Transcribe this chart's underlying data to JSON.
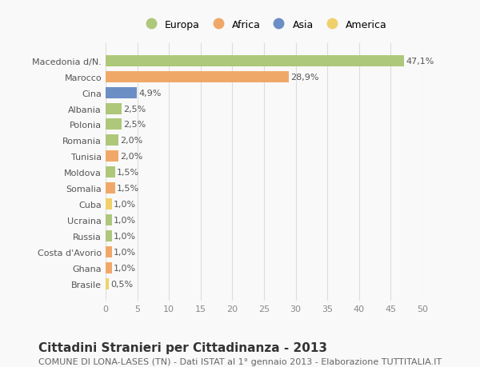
{
  "countries": [
    "Macedonia d/N.",
    "Marocco",
    "Cina",
    "Albania",
    "Polonia",
    "Romania",
    "Tunisia",
    "Moldova",
    "Somalia",
    "Cuba",
    "Ucraina",
    "Russia",
    "Costa d'Avorio",
    "Ghana",
    "Brasile"
  ],
  "values": [
    47.1,
    28.9,
    4.9,
    2.5,
    2.5,
    2.0,
    2.0,
    1.5,
    1.5,
    1.0,
    1.0,
    1.0,
    1.0,
    1.0,
    0.5
  ],
  "labels": [
    "47,1%",
    "28,9%",
    "4,9%",
    "2,5%",
    "2,5%",
    "2,0%",
    "2,0%",
    "1,5%",
    "1,5%",
    "1,0%",
    "1,0%",
    "1,0%",
    "1,0%",
    "1,0%",
    "0,5%"
  ],
  "colors": [
    "#adc87a",
    "#f0a868",
    "#6b8ec4",
    "#adc87a",
    "#adc87a",
    "#adc87a",
    "#f0a868",
    "#adc87a",
    "#f0a868",
    "#f0d06a",
    "#adc87a",
    "#adc87a",
    "#f0a868",
    "#f0a868",
    "#f0d06a"
  ],
  "legend_labels": [
    "Europa",
    "Africa",
    "Asia",
    "America"
  ],
  "legend_colors": [
    "#adc87a",
    "#f0a868",
    "#6b8ec4",
    "#f0d06a"
  ],
  "xlim": [
    0,
    50
  ],
  "xticks": [
    0,
    5,
    10,
    15,
    20,
    25,
    30,
    35,
    40,
    45,
    50
  ],
  "title": "Cittadini Stranieri per Cittadinanza - 2013",
  "subtitle": "COMUNE DI LONA-LASES (TN) - Dati ISTAT al 1° gennaio 2013 - Elaborazione TUTTITALIA.IT",
  "bg_color": "#f9f9f9",
  "grid_color": "#dddddd",
  "bar_height": 0.7,
  "label_fontsize": 8,
  "tick_fontsize": 8,
  "title_fontsize": 11,
  "subtitle_fontsize": 8
}
